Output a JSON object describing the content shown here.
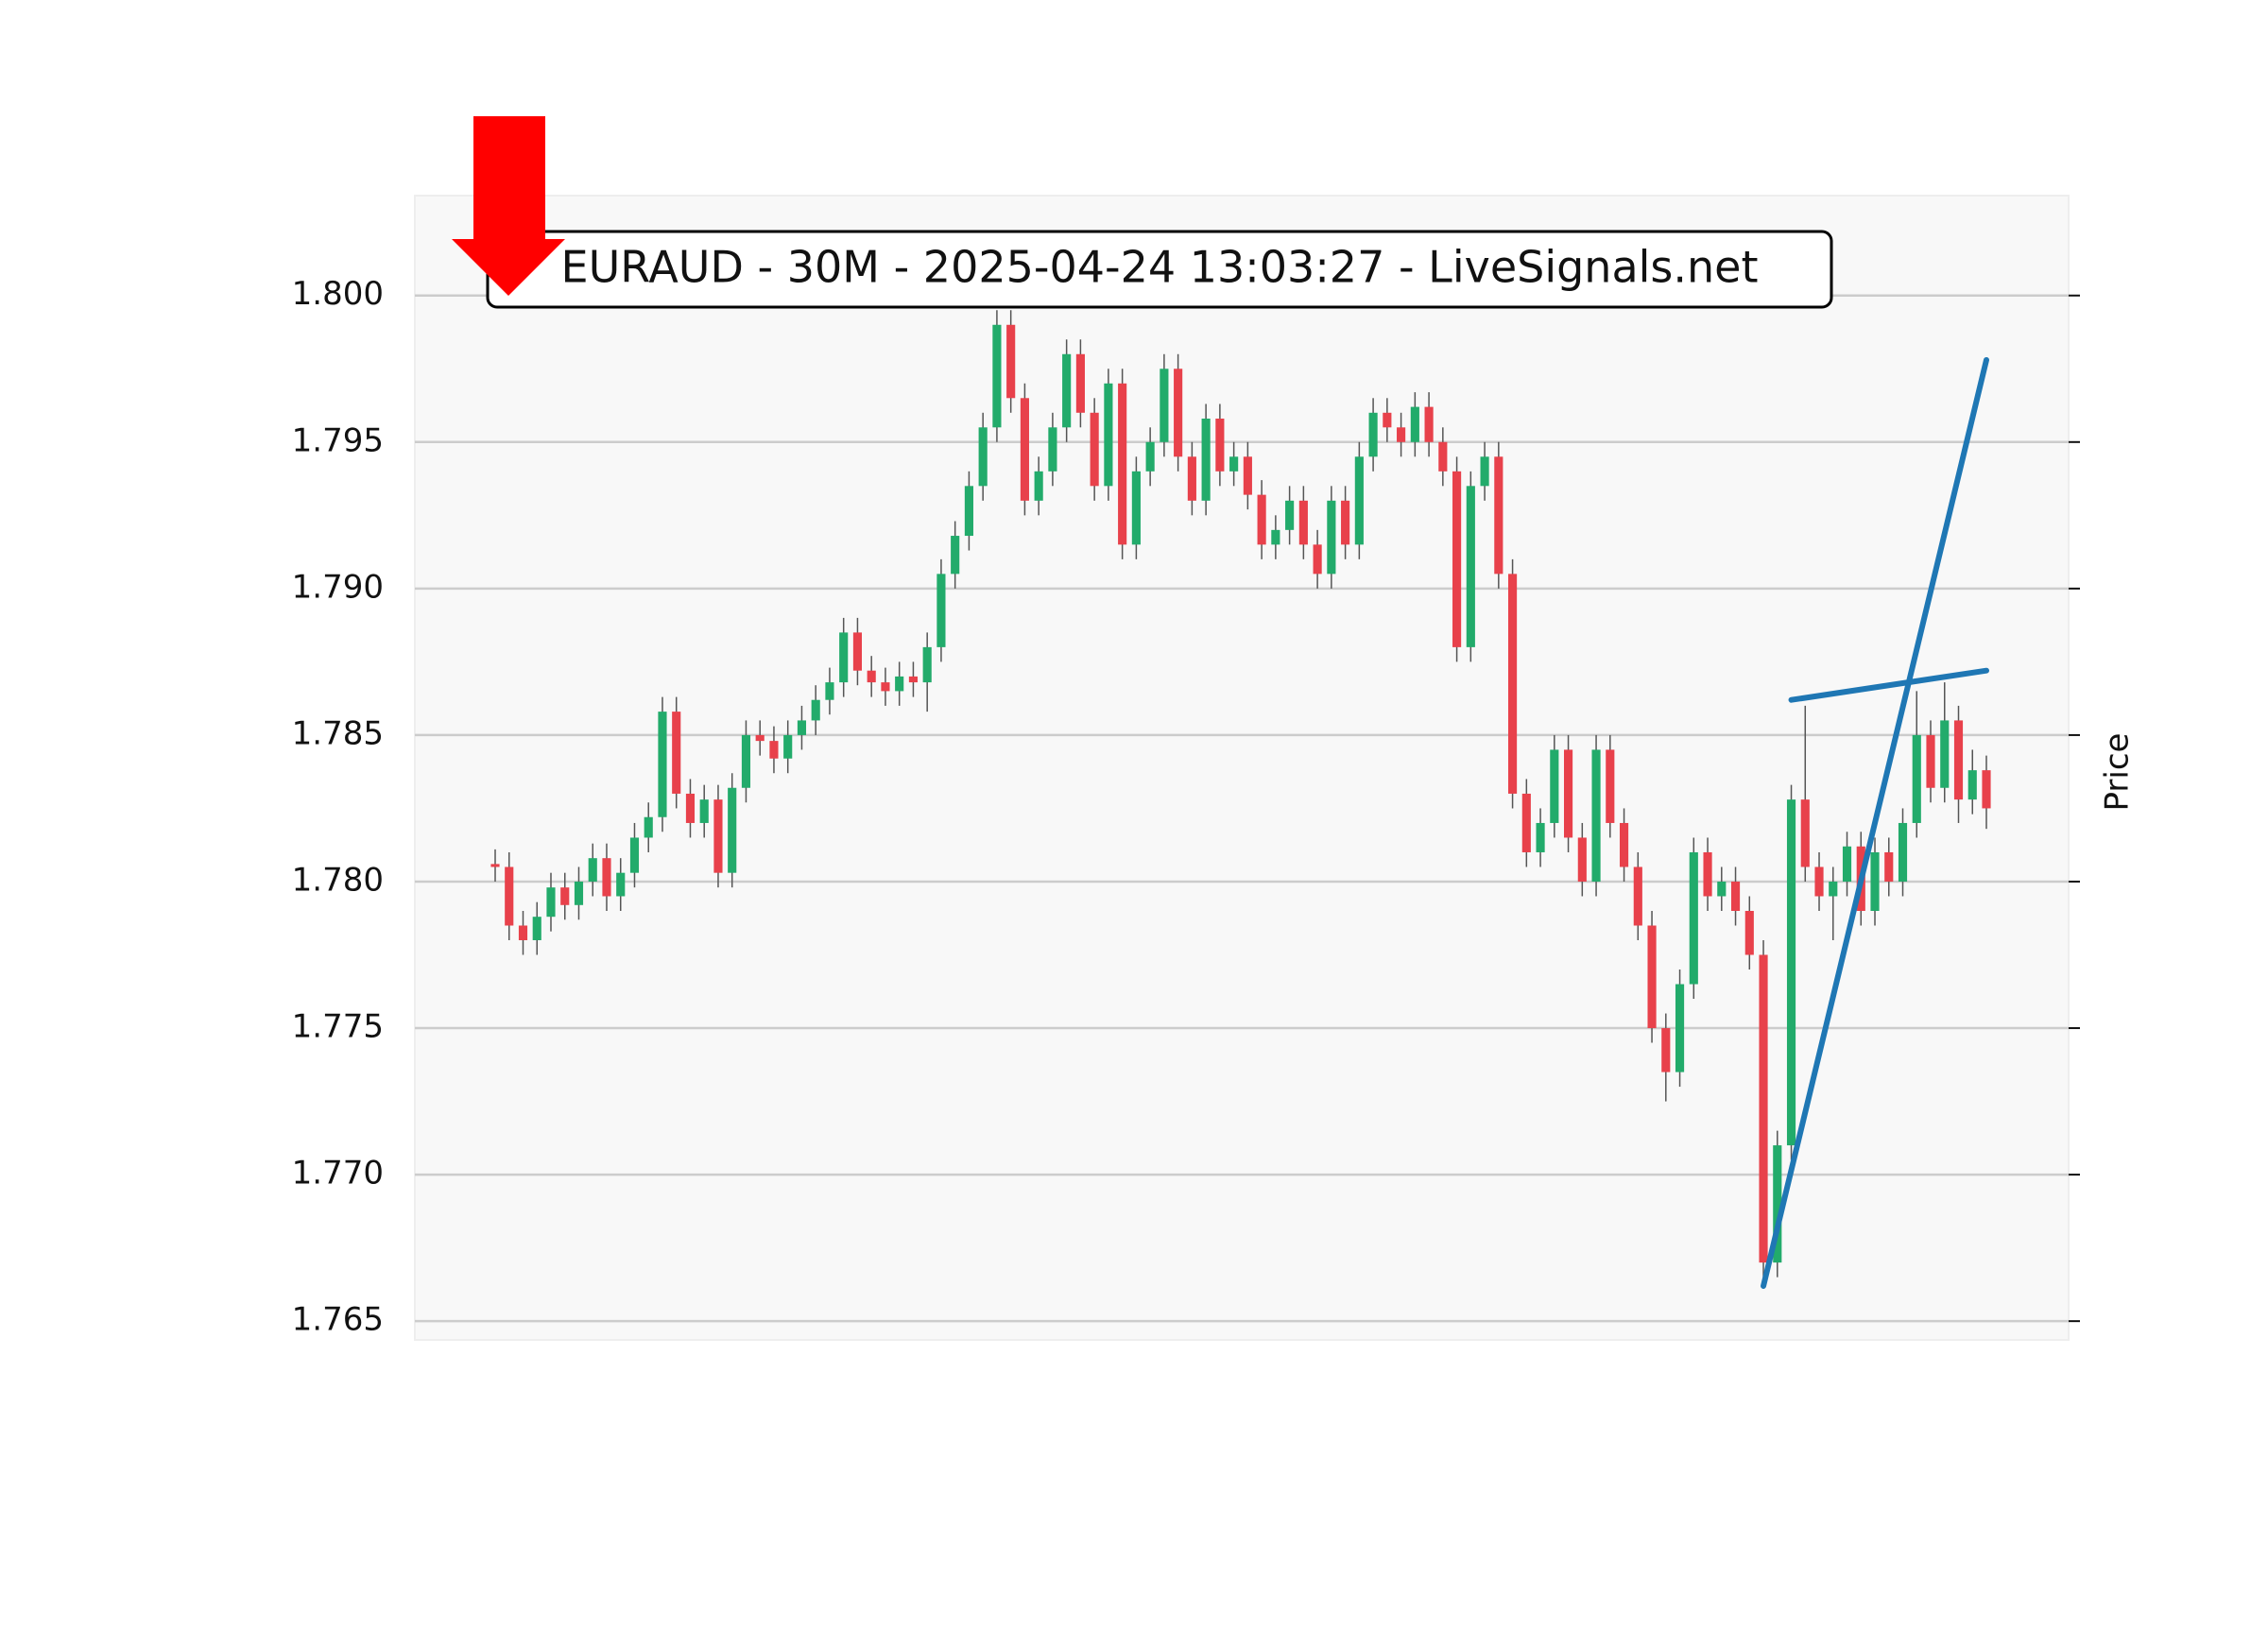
{
  "chart_data": {
    "type": "candlestick",
    "title": "EURAUD - 30M - 2025-04-24 13:03:27 - LiveSignals.net",
    "ylabel": "Price",
    "up_color": "#22ab6b",
    "down_color": "#e8414b",
    "ylim": [
      1.76436,
      1.80341
    ],
    "yticks": [
      1.765,
      {
        "value": 1.77,
        "label": "1.770"
      },
      1.775,
      {
        "value": 1.78,
        "label": "1.780"
      },
      1.785,
      {
        "value": 1.79,
        "label": "1.790"
      },
      1.795,
      {
        "value": 1.8,
        "label": "1.800"
      }
    ],
    "grid": true,
    "open": [
      1.7806,
      1.7805,
      1.7785,
      1.778,
      1.7788,
      1.7798,
      1.7792,
      1.78,
      1.7808,
      1.7795,
      1.7803,
      1.7815,
      1.7822,
      1.7858,
      1.783,
      1.782,
      1.7828,
      1.7803,
      1.7832,
      1.785,
      1.7848,
      1.7842,
      1.785,
      1.7855,
      1.7862,
      1.7868,
      1.7885,
      1.7872,
      1.7868,
      1.7865,
      1.787,
      1.7868,
      1.788,
      1.7905,
      1.7918,
      1.7935,
      1.7955,
      1.799,
      1.7965,
      1.793,
      1.794,
      1.7955,
      1.798,
      1.796,
      1.7935,
      1.797,
      1.7915,
      1.794,
      1.795,
      1.7975,
      1.7945,
      1.793,
      1.7958,
      1.794,
      1.7945,
      1.7932,
      1.7915,
      1.792,
      1.793,
      1.7915,
      1.7905,
      1.793,
      1.7915,
      1.7945,
      1.796,
      1.7955,
      1.795,
      1.7962,
      1.795,
      1.794,
      1.788,
      1.7935,
      1.7945,
      1.7905,
      1.783,
      1.781,
      1.782,
      1.7845,
      1.7815,
      1.78,
      1.7845,
      1.782,
      1.7805,
      1.7785,
      1.775,
      1.7735,
      1.7765,
      1.781,
      1.7795,
      1.78,
      1.779,
      1.7775,
      1.767,
      1.771,
      1.7828,
      1.7805,
      1.7795,
      1.78,
      1.7812,
      1.779,
      1.781,
      1.78,
      1.782,
      1.785,
      1.7832,
      1.7855,
      1.7828,
      1.7838
    ],
    "high": [
      1.7811,
      1.781,
      1.779,
      1.7793,
      1.7803,
      1.7803,
      1.7805,
      1.7813,
      1.7813,
      1.7808,
      1.782,
      1.7827,
      1.7863,
      1.7863,
      1.7835,
      1.7833,
      1.7833,
      1.7837,
      1.7855,
      1.7855,
      1.7853,
      1.7855,
      1.786,
      1.7867,
      1.7873,
      1.789,
      1.789,
      1.7877,
      1.7873,
      1.7875,
      1.7875,
      1.7885,
      1.791,
      1.7923,
      1.794,
      1.796,
      1.7995,
      1.7995,
      1.797,
      1.7945,
      1.796,
      1.7985,
      1.7985,
      1.7965,
      1.7975,
      1.7975,
      1.7945,
      1.7955,
      1.798,
      1.798,
      1.795,
      1.7963,
      1.7963,
      1.795,
      1.795,
      1.7937,
      1.7925,
      1.7935,
      1.7935,
      1.792,
      1.7935,
      1.7935,
      1.795,
      1.7965,
      1.7965,
      1.796,
      1.7967,
      1.7967,
      1.7955,
      1.7945,
      1.794,
      1.795,
      1.795,
      1.791,
      1.7835,
      1.7825,
      1.785,
      1.785,
      1.782,
      1.785,
      1.785,
      1.7825,
      1.781,
      1.779,
      1.7755,
      1.777,
      1.7815,
      1.7815,
      1.7805,
      1.7805,
      1.7795,
      1.778,
      1.7715,
      1.7833,
      1.786,
      1.781,
      1.7805,
      1.7817,
      1.7817,
      1.7815,
      1.7815,
      1.7825,
      1.7865,
      1.7855,
      1.7868,
      1.786,
      1.7845,
      1.7843
    ],
    "low": [
      1.78,
      1.778,
      1.7775,
      1.7775,
      1.7783,
      1.7787,
      1.7787,
      1.7795,
      1.779,
      1.779,
      1.7798,
      1.781,
      1.7817,
      1.7825,
      1.7815,
      1.7815,
      1.7798,
      1.7798,
      1.7827,
      1.7843,
      1.7837,
      1.7837,
      1.7845,
      1.785,
      1.7857,
      1.7863,
      1.7867,
      1.7863,
      1.786,
      1.786,
      1.7863,
      1.7858,
      1.7875,
      1.79,
      1.7913,
      1.793,
      1.795,
      1.796,
      1.7925,
      1.7925,
      1.7935,
      1.795,
      1.7955,
      1.793,
      1.793,
      1.791,
      1.791,
      1.7935,
      1.7945,
      1.794,
      1.7925,
      1.7925,
      1.7935,
      1.7935,
      1.7927,
      1.791,
      1.791,
      1.7915,
      1.791,
      1.79,
      1.79,
      1.791,
      1.791,
      1.794,
      1.795,
      1.7945,
      1.7945,
      1.7945,
      1.7935,
      1.7875,
      1.7875,
      1.793,
      1.79,
      1.7825,
      1.7805,
      1.7805,
      1.7815,
      1.781,
      1.7795,
      1.7795,
      1.7815,
      1.78,
      1.778,
      1.7745,
      1.7725,
      1.773,
      1.776,
      1.779,
      1.779,
      1.7785,
      1.777,
      1.7665,
      1.7665,
      1.7705,
      1.78,
      1.779,
      1.778,
      1.7795,
      1.7785,
      1.7785,
      1.7795,
      1.7795,
      1.7815,
      1.7827,
      1.7827,
      1.782,
      1.7823,
      1.7818
    ],
    "close": [
      1.7805,
      1.7785,
      1.778,
      1.7788,
      1.7798,
      1.7792,
      1.78,
      1.7808,
      1.7795,
      1.7803,
      1.7815,
      1.7822,
      1.7858,
      1.783,
      1.782,
      1.7828,
      1.7803,
      1.7832,
      1.785,
      1.7848,
      1.7842,
      1.785,
      1.7855,
      1.7862,
      1.7868,
      1.7885,
      1.7872,
      1.7868,
      1.7865,
      1.787,
      1.7868,
      1.788,
      1.7905,
      1.7918,
      1.7935,
      1.7955,
      1.799,
      1.7965,
      1.793,
      1.794,
      1.7955,
      1.798,
      1.796,
      1.7935,
      1.797,
      1.7915,
      1.794,
      1.795,
      1.7975,
      1.7945,
      1.793,
      1.7958,
      1.794,
      1.7945,
      1.7932,
      1.7915,
      1.792,
      1.793,
      1.7915,
      1.7905,
      1.793,
      1.7915,
      1.7945,
      1.796,
      1.7955,
      1.795,
      1.7962,
      1.795,
      1.794,
      1.788,
      1.7935,
      1.7945,
      1.7905,
      1.783,
      1.781,
      1.782,
      1.7845,
      1.7815,
      1.78,
      1.7845,
      1.782,
      1.7805,
      1.7785,
      1.775,
      1.7735,
      1.7765,
      1.781,
      1.7795,
      1.78,
      1.779,
      1.7775,
      1.767,
      1.771,
      1.7828,
      1.7805,
      1.7795,
      1.78,
      1.7812,
      1.779,
      1.781,
      1.78,
      1.782,
      1.785,
      1.7832,
      1.7855,
      1.7828,
      1.7838,
      1.7825
    ],
    "trendlines": [
      {
        "color": "#1f77b4",
        "x": [
          91,
          107
        ],
        "y": [
          1.7662,
          1.7978
        ]
      },
      {
        "color": "#1f77b4",
        "x": [
          93,
          107
        ],
        "y": [
          1.7862,
          1.7872
        ]
      }
    ]
  }
}
